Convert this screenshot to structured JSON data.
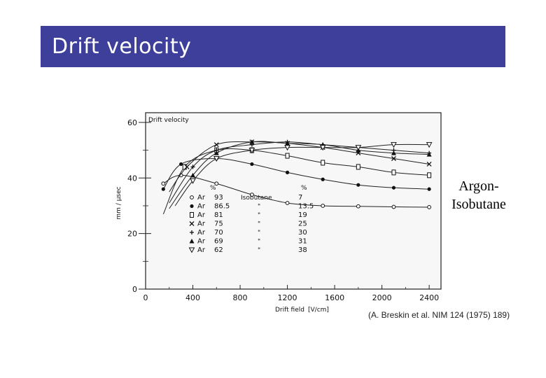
{
  "slide": {
    "title": "Drift velocity",
    "side_label_line1": "Argon-",
    "side_label_line2": "Isobutane",
    "citation": "(A. Breskin et al. NIM 124 (1975) 189)"
  },
  "chart_data": {
    "type": "line",
    "title": "Drift velocity",
    "xlabel": "Drift field",
    "xunit": "V/cm",
    "ylabel": "mm / μsec",
    "xlim": [
      0,
      2500
    ],
    "ylim": [
      0,
      62
    ],
    "xticks": [
      0,
      400,
      800,
      1200,
      1600,
      2000,
      2400
    ],
    "yticks": [
      0,
      20,
      40,
      60
    ],
    "legend": {
      "header_ar": "%",
      "header_iso": "%",
      "iso_name": "Isobutane",
      "ditto": "\""
    },
    "series": [
      {
        "name": "Ar 93 / Isobutane 7",
        "gas": "Ar",
        "ar": "93",
        "iso": "7",
        "marker": "circle-open",
        "x": [
          150,
          300,
          600,
          900,
          1200,
          1500,
          1800,
          2100,
          2400
        ],
        "y": [
          38,
          41,
          38,
          34,
          31,
          30,
          29.8,
          29.6,
          29.5
        ]
      },
      {
        "name": "Ar 86.5 / Isobutane 13.5",
        "gas": "Ar",
        "ar": "86.5",
        "iso": "13.5",
        "marker": "circle-filled",
        "x": [
          150,
          300,
          600,
          900,
          1200,
          1500,
          1800,
          2100,
          2400
        ],
        "y": [
          36,
          45,
          47,
          45,
          42,
          39.5,
          37.5,
          36.5,
          36
        ]
      },
      {
        "name": "Ar 81 / Isobutane 19",
        "gas": "Ar",
        "ar": "81",
        "iso": "19",
        "marker": "square-open",
        "x": [
          150,
          330,
          600,
          900,
          1200,
          1500,
          1800,
          2100,
          2400
        ],
        "y": [
          27,
          44,
          50,
          50,
          48,
          45.5,
          44,
          42,
          41
        ]
      },
      {
        "name": "Ar 75 / Isobutane 25",
        "gas": "Ar",
        "ar": "75",
        "iso": "25",
        "marker": "x",
        "x": [
          200,
          350,
          600,
          900,
          1200,
          1500,
          1800,
          2100,
          2400
        ],
        "y": [
          35,
          44,
          52,
          53,
          52.5,
          51,
          49,
          47,
          45
        ]
      },
      {
        "name": "Ar 70 / Isobutane 30",
        "gas": "Ar",
        "ar": "70",
        "iso": "30",
        "marker": "plus",
        "x": [
          200,
          400,
          600,
          900,
          1200,
          1500,
          1800,
          2100,
          2400
        ],
        "y": [
          31,
          44,
          50,
          52,
          53,
          52,
          51,
          50,
          49
        ]
      },
      {
        "name": "Ar 69 / Isobutane 31",
        "gas": "Ar",
        "ar": "69",
        "iso": "31",
        "marker": "triangle-filled",
        "x": [
          200,
          400,
          600,
          900,
          1200,
          1500,
          1800,
          2100,
          2400
        ],
        "y": [
          29,
          41,
          49,
          53,
          52.5,
          52,
          50,
          49,
          48.5
        ]
      },
      {
        "name": "Ar 62 / Isobutane 38",
        "gas": "Ar",
        "ar": "62",
        "iso": "38",
        "marker": "triangle-open",
        "x": [
          250,
          400,
          600,
          900,
          1200,
          1500,
          1800,
          2100,
          2400
        ],
        "y": [
          30,
          39,
          47,
          50,
          51,
          51,
          51,
          52,
          52
        ]
      }
    ]
  }
}
